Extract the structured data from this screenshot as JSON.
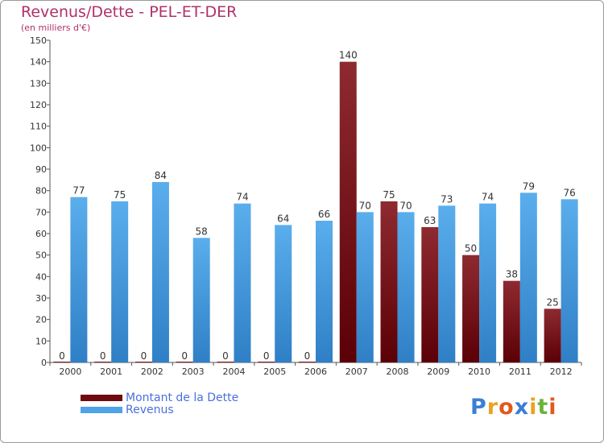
{
  "page": {
    "title": "Revenus/Dette - PEL-ET-DER",
    "subtitle": "(en milliers d'€)"
  },
  "chart_data": {
    "type": "bar",
    "categories": [
      "2000",
      "2001",
      "2002",
      "2003",
      "2004",
      "2005",
      "2006",
      "2007",
      "2008",
      "2009",
      "2010",
      "2011",
      "2012"
    ],
    "series": [
      {
        "name": "Montant de la Dette",
        "color": "#7b1218",
        "values": [
          0,
          0,
          0,
          0,
          0,
          0,
          0,
          140,
          75,
          63,
          50,
          38,
          25
        ]
      },
      {
        "name": "Revenus",
        "color": "#4fa3e6",
        "values": [
          77,
          75,
          84,
          58,
          74,
          64,
          66,
          70,
          70,
          73,
          74,
          79,
          76
        ]
      }
    ],
    "yticks": [
      0,
      10,
      20,
      30,
      40,
      50,
      60,
      70,
      80,
      90,
      100,
      110,
      120,
      130,
      140,
      150
    ],
    "ylim": [
      0,
      150
    ],
    "grid": false,
    "legend": "bottom-left"
  },
  "logo": {
    "letters": [
      "P",
      "r",
      "o",
      "x",
      "i",
      "t",
      "i"
    ],
    "colors": [
      "#3a7fd5",
      "#e8a321",
      "#e05a1c",
      "#3a7fd5",
      "#e8a321",
      "#6cb33e",
      "#e05a1c"
    ]
  }
}
